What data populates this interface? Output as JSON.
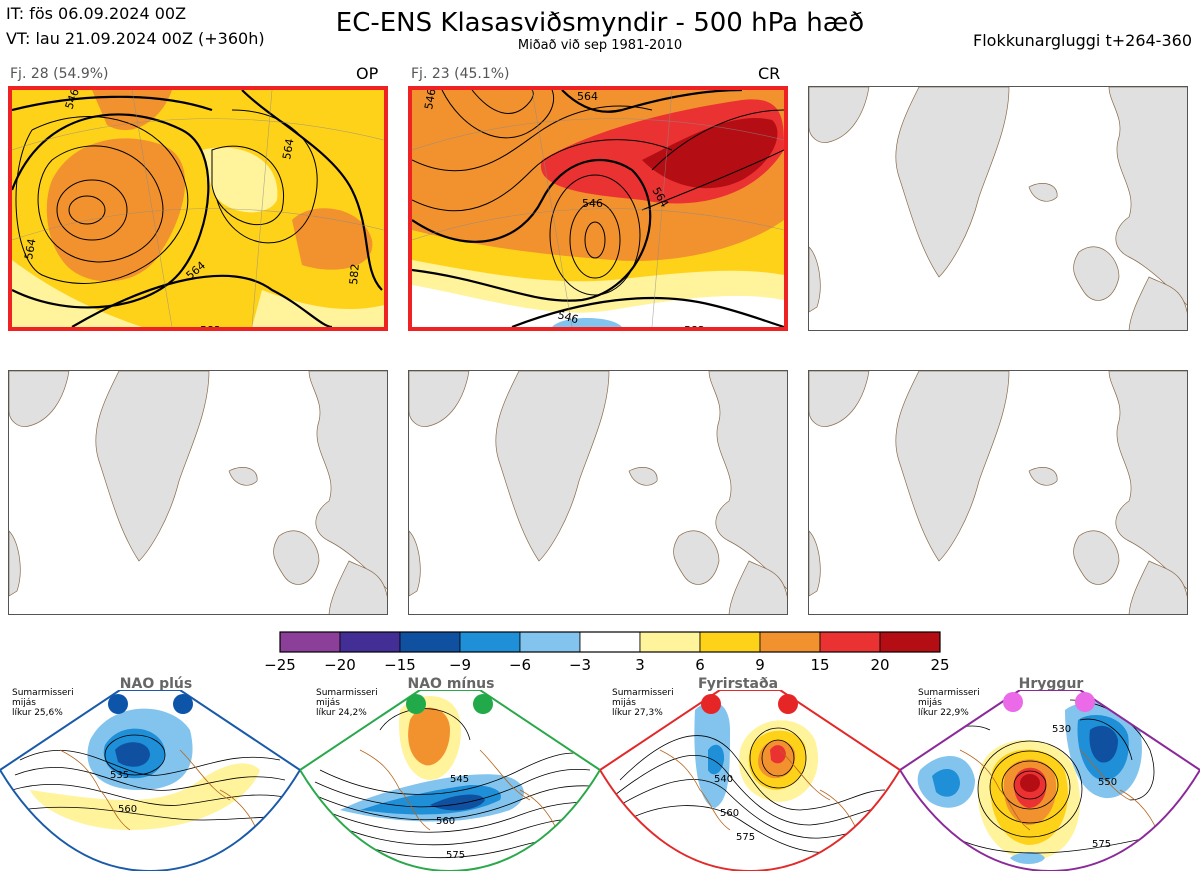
{
  "header": {
    "it_line": "IT: fös 06.09.2024 00Z",
    "vt_line": "VT: lau 21.09.2024 00Z  (+360h)",
    "title": "EC-ENS Klasasviðsmyndir - 500 hPa hæð",
    "subtitle": "Miðað við sep 1981-2010",
    "window_label": "Flokkunargluggi t+264-360"
  },
  "panels": [
    {
      "label": "Fj. 28 (54.9%)",
      "tag": "OP",
      "selected": true,
      "contour_labels": [
        "546",
        "564",
        "564",
        "564",
        "582",
        "582"
      ]
    },
    {
      "label": "Fj. 23 (45.1%)",
      "tag": "CR",
      "selected": true,
      "contour_labels": [
        "546",
        "546",
        "564",
        "564",
        "582",
        "546"
      ]
    },
    {
      "label": "",
      "tag": "",
      "selected": false
    },
    {
      "label": "",
      "tag": "",
      "selected": false
    },
    {
      "label": "",
      "tag": "",
      "selected": false
    },
    {
      "label": "",
      "tag": "",
      "selected": false
    }
  ],
  "colorbar": {
    "ticks": [
      "−25",
      "−20",
      "−15",
      "−9",
      "−6",
      "−3",
      "3",
      "6",
      "9",
      "15",
      "20",
      "25"
    ],
    "colors": [
      "#8c3f99",
      "#432e96",
      "#0f51a0",
      "#1f8fd8",
      "#82c4ee",
      "#ffffff",
      "#fff39c",
      "#ffd21a",
      "#f2922e",
      "#eb3232",
      "#b50d14"
    ]
  },
  "regimes": [
    {
      "name": "NAO plús",
      "note1": "Sumarmisseri",
      "note2": "mijás",
      "note3": "líkur 25,6%",
      "border_color": "#1a5aa8",
      "dot_color": "#0d55a8",
      "contour_labels": [
        "535",
        "560"
      ]
    },
    {
      "name": "NAO mínus",
      "note1": "Sumarmisseri",
      "note2": "mijás",
      "note3": "líkur 24,2%",
      "border_color": "#2aa84a",
      "dot_color": "#22aa4a",
      "contour_labels": [
        "545",
        "560",
        "575"
      ]
    },
    {
      "name": "Fyrirstaða",
      "note1": "Sumarmisseri",
      "note2": "mijás",
      "note3": "líkur 27,3%",
      "border_color": "#e22a2a",
      "dot_color": "#e62626",
      "contour_labels": [
        "540",
        "560",
        "575"
      ]
    },
    {
      "name": "Hryggur",
      "note1": "Sumarmisseri",
      "note2": "mijás",
      "note3": "líkur 22,9%",
      "border_color": "#8a2a99",
      "dot_color": "#ea6ae8",
      "contour_labels": [
        "530",
        "550",
        "575"
      ]
    }
  ]
}
